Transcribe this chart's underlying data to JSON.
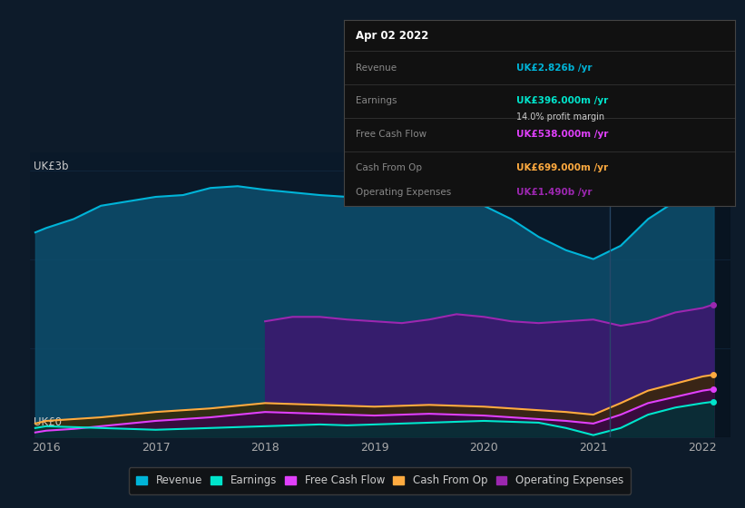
{
  "bg_color": "#0d1b2a",
  "plot_bg": "#0a1929",
  "years": [
    2015.9,
    2016.0,
    2016.25,
    2016.5,
    2016.75,
    2017.0,
    2017.25,
    2017.5,
    2017.75,
    2018.0,
    2018.25,
    2018.5,
    2018.75,
    2019.0,
    2019.25,
    2019.5,
    2019.75,
    2020.0,
    2020.25,
    2020.5,
    2020.75,
    2021.0,
    2021.25,
    2021.5,
    2021.75,
    2022.0,
    2022.1
  ],
  "revenue": [
    2.3,
    2.35,
    2.45,
    2.6,
    2.65,
    2.7,
    2.72,
    2.8,
    2.82,
    2.78,
    2.75,
    2.72,
    2.7,
    2.65,
    2.68,
    2.72,
    2.68,
    2.6,
    2.45,
    2.25,
    2.1,
    2.0,
    2.15,
    2.45,
    2.65,
    2.82,
    2.83
  ],
  "earnings": [
    0.1,
    0.12,
    0.11,
    0.1,
    0.09,
    0.08,
    0.09,
    0.1,
    0.11,
    0.12,
    0.13,
    0.14,
    0.13,
    0.14,
    0.15,
    0.16,
    0.17,
    0.18,
    0.17,
    0.16,
    0.1,
    0.02,
    0.1,
    0.25,
    0.33,
    0.38,
    0.396
  ],
  "free_cash_flow": [
    0.05,
    0.07,
    0.09,
    0.12,
    0.15,
    0.18,
    0.2,
    0.22,
    0.25,
    0.28,
    0.27,
    0.26,
    0.25,
    0.24,
    0.25,
    0.26,
    0.25,
    0.24,
    0.22,
    0.2,
    0.18,
    0.15,
    0.25,
    0.38,
    0.45,
    0.52,
    0.538
  ],
  "cash_from_op": [
    0.15,
    0.18,
    0.2,
    0.22,
    0.25,
    0.28,
    0.3,
    0.32,
    0.35,
    0.38,
    0.37,
    0.36,
    0.35,
    0.34,
    0.35,
    0.36,
    0.35,
    0.34,
    0.32,
    0.3,
    0.28,
    0.25,
    0.38,
    0.52,
    0.6,
    0.68,
    0.699
  ],
  "op_expenses_years": [
    2018.0,
    2018.25,
    2018.5,
    2018.75,
    2019.0,
    2019.25,
    2019.5,
    2019.75,
    2020.0,
    2020.25,
    2020.5,
    2020.75,
    2021.0,
    2021.25,
    2021.5,
    2021.75,
    2022.0,
    2022.1
  ],
  "op_expenses": [
    1.3,
    1.35,
    1.35,
    1.32,
    1.3,
    1.28,
    1.32,
    1.38,
    1.35,
    1.3,
    1.28,
    1.3,
    1.32,
    1.25,
    1.3,
    1.4,
    1.45,
    1.49
  ],
  "revenue_color": "#00b4d8",
  "earnings_color": "#00e5cc",
  "free_cash_flow_color": "#e040fb",
  "cash_from_op_color": "#ffab40",
  "op_expenses_color": "#9c27b0",
  "revenue_fill": "#0d4f6e",
  "op_expenses_fill": "#3a1a6e",
  "ylabel": "UK£3b",
  "y0label": "UK£0",
  "xlim": [
    2015.85,
    2022.25
  ],
  "ylim": [
    0,
    3.2
  ],
  "xlabel_ticks": [
    2016,
    2017,
    2018,
    2019,
    2020,
    2021,
    2022
  ],
  "tooltip_date": "Apr 02 2022",
  "tooltip_revenue_label": "Revenue",
  "tooltip_revenue_value": "UK£2.826b /yr",
  "tooltip_revenue_color": "#00b4d8",
  "tooltip_earnings_label": "Earnings",
  "tooltip_earnings_value": "UK£396.000m /yr",
  "tooltip_earnings_color": "#00e5cc",
  "tooltip_margin": "14.0% profit margin",
  "tooltip_fcf_label": "Free Cash Flow",
  "tooltip_fcf_value": "UK£538.000m /yr",
  "tooltip_fcf_color": "#e040fb",
  "tooltip_cop_label": "Cash From Op",
  "tooltip_cop_value": "UK£699.000m /yr",
  "tooltip_cop_color": "#ffab40",
  "tooltip_opex_label": "Operating Expenses",
  "tooltip_opex_value": "UK£1.490b /yr",
  "tooltip_opex_color": "#9c27b0",
  "legend_items": [
    "Revenue",
    "Earnings",
    "Free Cash Flow",
    "Cash From Op",
    "Operating Expenses"
  ],
  "legend_colors": [
    "#00b4d8",
    "#00e5cc",
    "#e040fb",
    "#ffab40",
    "#9c27b0"
  ],
  "separator_x": 2021.15
}
